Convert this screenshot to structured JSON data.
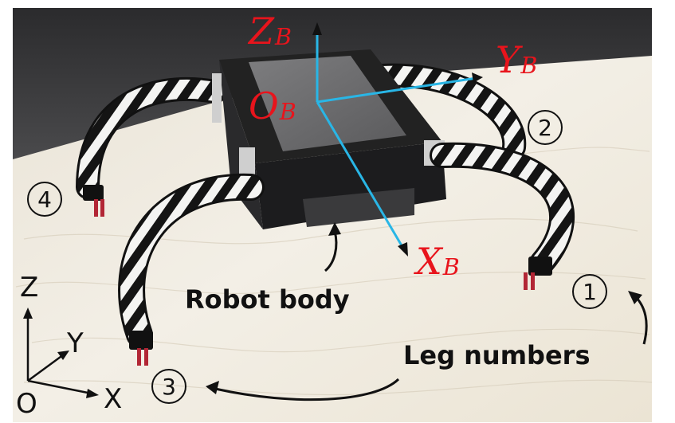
{
  "body_frame": {
    "z_axis": {
      "letter": "Z",
      "subscript": "B"
    },
    "y_axis": {
      "letter": "Y",
      "subscript": "B"
    },
    "x_axis": {
      "letter": "X",
      "subscript": "B"
    },
    "origin": {
      "letter": "O",
      "subscript": "B"
    },
    "color": "#e8141c",
    "axis_color": "#29b6e6"
  },
  "world_frame": {
    "z_label": "Z",
    "y_label": "Y",
    "x_label": "X",
    "origin_label": "O"
  },
  "legs": {
    "leg1": "1",
    "leg2": "2",
    "leg3": "3",
    "leg4": "4"
  },
  "annotations": {
    "robot_body": "Robot body",
    "leg_numbers": "Leg numbers"
  }
}
